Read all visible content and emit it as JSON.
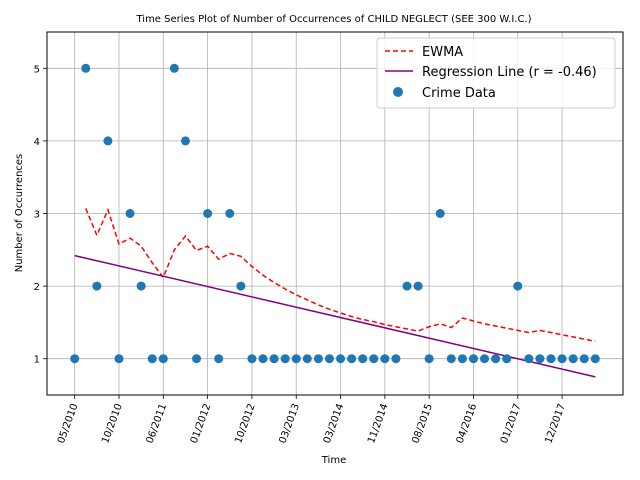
{
  "chart_data": {
    "type": "scatter",
    "title": "Time Series Plot of Number of Occurrences of CHILD NEGLECT (SEE 300 W.I.C.)",
    "xlabel": "Time",
    "ylabel": "Number of Occurrences",
    "x_tick_labels": [
      "05/2010",
      "10/2010",
      "06/2011",
      "01/2012",
      "10/2012",
      "03/2013",
      "03/2014",
      "11/2014",
      "08/2015",
      "04/2016",
      "01/2017",
      "12/2017"
    ],
    "x_tick_indices": [
      0,
      4,
      8,
      12,
      16,
      20,
      24,
      28,
      32,
      36,
      40,
      44
    ],
    "y_ticks": [
      1,
      2,
      3,
      4,
      5
    ],
    "xlim": [
      -2.5,
      49.5
    ],
    "ylim": [
      0.5,
      5.5
    ],
    "grid": true,
    "legend_position": "top-right",
    "series": [
      {
        "name": "Crime Data",
        "kind": "scatter",
        "color": "#1f77b4",
        "x": [
          0,
          1,
          2,
          3,
          4,
          5,
          6,
          7,
          8,
          9,
          10,
          11,
          12,
          13,
          14,
          15,
          16,
          17,
          18,
          19,
          20,
          21,
          22,
          23,
          24,
          25,
          26,
          27,
          28,
          29,
          30,
          31,
          32,
          33,
          34,
          35,
          36,
          37,
          38,
          39,
          40,
          41,
          42,
          43,
          44,
          45,
          46,
          47
        ],
        "y": [
          1,
          5,
          2,
          4,
          1,
          3,
          2,
          1,
          1,
          5,
          4,
          1,
          3,
          1,
          3,
          2,
          1,
          1,
          1,
          1,
          1,
          1,
          1,
          1,
          1,
          1,
          1,
          1,
          1,
          1,
          2,
          2,
          1,
          3,
          1,
          1,
          1,
          1,
          1,
          1,
          2,
          1,
          1,
          1,
          1,
          1,
          1,
          1
        ]
      },
      {
        "name": "EWMA",
        "kind": "line",
        "style": "dashed",
        "color": "#ff0000",
        "x": [
          1,
          2,
          3,
          4,
          5,
          6,
          7,
          8,
          9,
          10,
          11,
          12,
          13,
          14,
          15,
          16,
          17,
          18,
          19,
          20,
          21,
          22,
          23,
          24,
          25,
          26,
          27,
          28,
          29,
          30,
          31,
          32,
          33,
          34,
          35,
          36,
          37,
          38,
          39,
          40,
          41,
          42,
          43,
          44,
          45,
          46,
          47
        ],
        "y": [
          3.07,
          2.7,
          3.05,
          2.58,
          2.66,
          2.55,
          2.32,
          2.12,
          2.5,
          2.69,
          2.49,
          2.55,
          2.37,
          2.45,
          2.41,
          2.27,
          2.15,
          2.05,
          1.96,
          1.88,
          1.81,
          1.74,
          1.68,
          1.63,
          1.58,
          1.54,
          1.51,
          1.47,
          1.44,
          1.41,
          1.38,
          1.44,
          1.48,
          1.43,
          1.56,
          1.52,
          1.48,
          1.45,
          1.42,
          1.39,
          1.36,
          1.39,
          1.36,
          1.33,
          1.3,
          1.27,
          1.24
        ]
      },
      {
        "name": "Regression Line (r = -0.46)",
        "kind": "line",
        "color": "#800080",
        "x": [
          0,
          47
        ],
        "y": [
          2.42,
          0.75
        ]
      }
    ]
  }
}
